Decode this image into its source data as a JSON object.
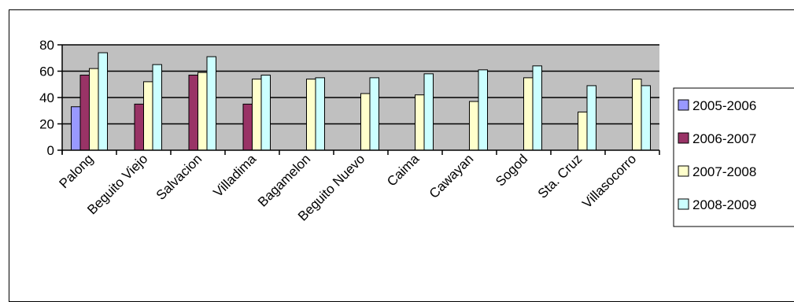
{
  "chart_data": {
    "type": "bar",
    "title": "",
    "xlabel": "",
    "ylabel": "",
    "ylim": [
      0,
      80
    ],
    "yticks": [
      0,
      20,
      40,
      60,
      80
    ],
    "grid": true,
    "legend": "right",
    "categories": [
      "Palong",
      "Beguito Viejo",
      "Salvacion",
      "Villadima",
      "Bagamelon",
      "Beguito Nuevo",
      "Caima",
      "Cawayan",
      "Sogod",
      "Sta. Cruz",
      "Villasocorro"
    ],
    "series": [
      {
        "name": "2005-2006",
        "color": "#9999ff",
        "values": [
          33,
          null,
          null,
          null,
          null,
          null,
          null,
          null,
          null,
          null,
          null
        ]
      },
      {
        "name": "2006-2007",
        "color": "#993366",
        "values": [
          57,
          35,
          57,
          35,
          null,
          null,
          null,
          null,
          null,
          null,
          null
        ]
      },
      {
        "name": "2007-2008",
        "color": "#ffffcc",
        "values": [
          62,
          52,
          59,
          54,
          54,
          43,
          42,
          37,
          55,
          29,
          54
        ]
      },
      {
        "name": "2008-2009",
        "color": "#ccffff",
        "values": [
          74,
          65,
          71,
          57,
          55,
          55,
          58,
          61,
          64,
          49,
          49
        ]
      }
    ],
    "plot_background": "#c0c0c0"
  }
}
